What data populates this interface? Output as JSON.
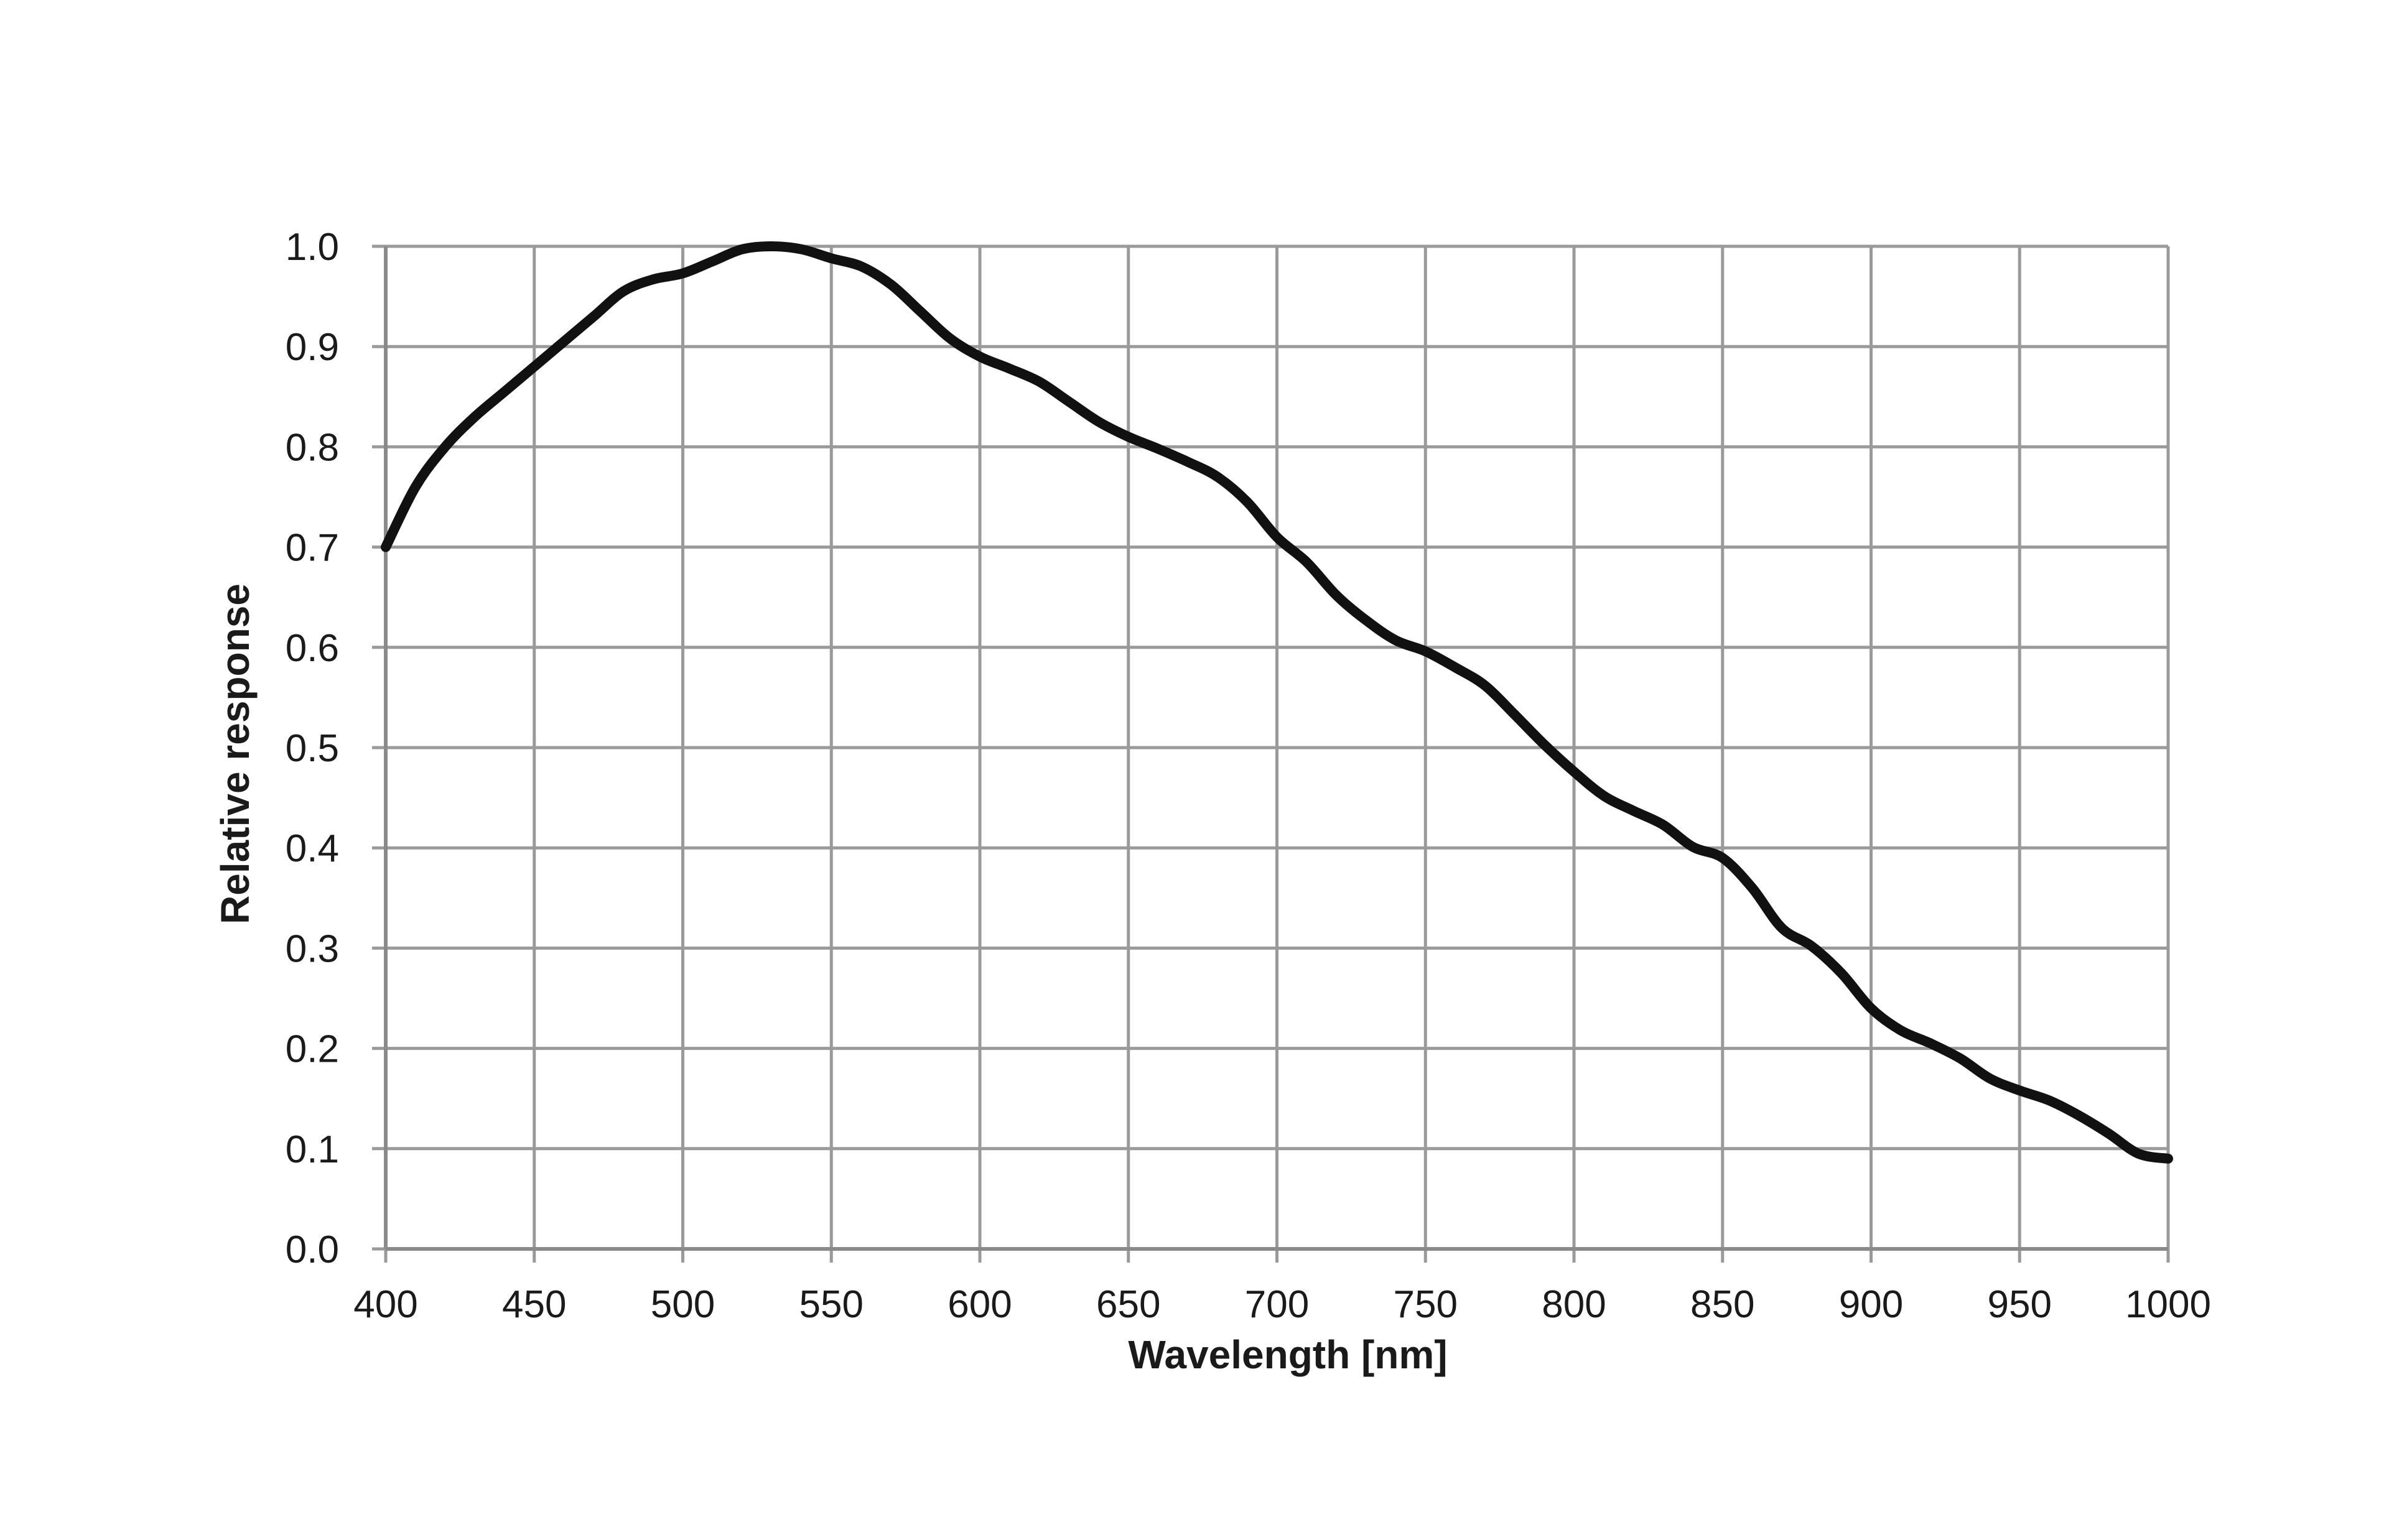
{
  "chart_data": {
    "type": "line",
    "title": "",
    "xlabel": "Wavelength [nm]",
    "ylabel": "Relative response",
    "xlim": [
      400,
      1000
    ],
    "ylim": [
      0.0,
      1.0
    ],
    "grid": true,
    "legend": "none",
    "line_color": "#111111",
    "x_ticks": [
      "400",
      "450",
      "500",
      "550",
      "600",
      "650",
      "700",
      "750",
      "800",
      "850",
      "900",
      "950",
      "1000"
    ],
    "y_ticks": [
      "0.0",
      "0.1",
      "0.2",
      "0.3",
      "0.4",
      "0.5",
      "0.6",
      "0.7",
      "0.8",
      "0.9",
      "1.0"
    ],
    "series": [
      {
        "x": [
          400,
          410,
          420,
          430,
          440,
          450,
          460,
          470,
          480,
          490,
          500,
          510,
          520,
          530,
          540,
          550,
          560,
          570,
          580,
          590,
          600,
          610,
          620,
          630,
          640,
          650,
          660,
          670,
          680,
          690,
          700,
          710,
          720,
          730,
          740,
          750,
          760,
          770,
          780,
          790,
          800,
          810,
          820,
          830,
          840,
          850,
          860,
          870,
          880,
          890,
          900,
          910,
          920,
          930,
          940,
          950,
          960,
          970,
          980,
          990,
          1000
        ],
        "values": [
          0.7,
          0.76,
          0.8,
          0.83,
          0.855,
          0.88,
          0.905,
          0.93,
          0.955,
          0.967,
          0.973,
          0.985,
          0.997,
          1.0,
          0.997,
          0.988,
          0.98,
          0.962,
          0.935,
          0.908,
          0.89,
          0.878,
          0.865,
          0.845,
          0.825,
          0.81,
          0.798,
          0.785,
          0.77,
          0.745,
          0.71,
          0.685,
          0.652,
          0.627,
          0.607,
          0.596,
          0.58,
          0.562,
          0.533,
          0.503,
          0.476,
          0.452,
          0.437,
          0.423,
          0.401,
          0.39,
          0.36,
          0.32,
          0.302,
          0.275,
          0.24,
          0.218,
          0.205,
          0.19,
          0.17,
          0.158,
          0.148,
          0.133,
          0.115,
          0.095,
          0.09
        ]
      }
    ]
  }
}
